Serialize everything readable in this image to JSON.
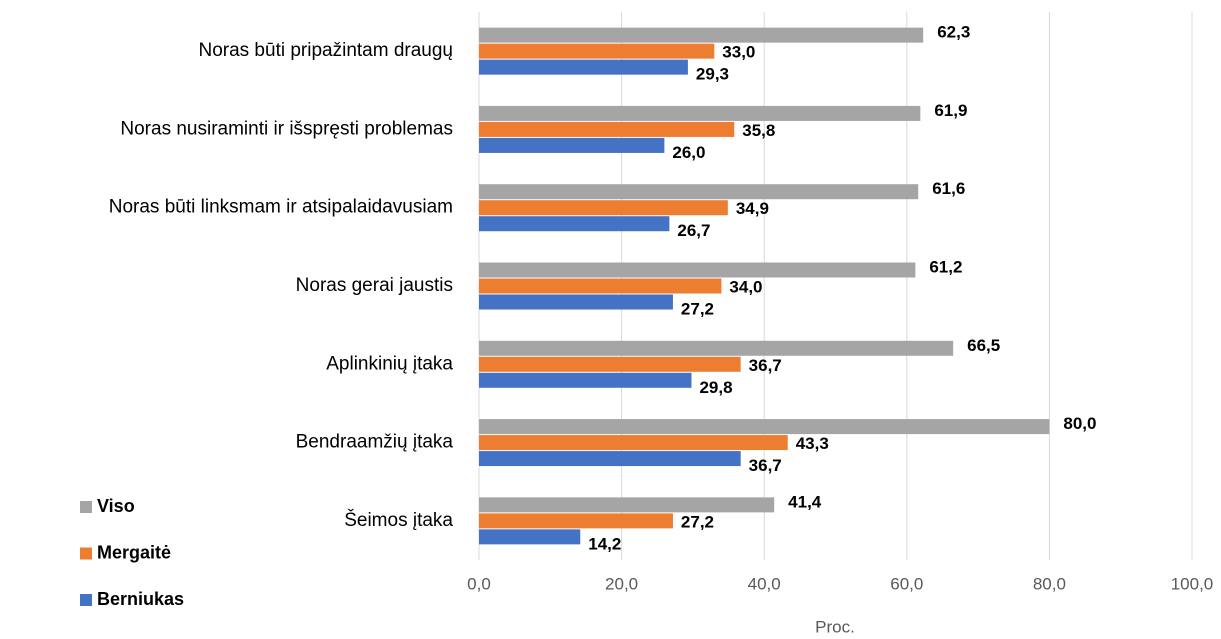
{
  "chart_data": {
    "type": "barh",
    "categories": [
      "Noras būti pripažintam draugų",
      "Noras nusiraminti ir išspręsti problemas",
      "Noras būti linksmam ir atsipalaidavusiam",
      "Noras gerai jaustis",
      "Aplinkinių įtaka",
      "Bendraamžių įtaka",
      "Šeimos įtaka"
    ],
    "series": [
      {
        "name": "Viso",
        "color": "#a5a5a5",
        "values": [
          62.3,
          61.9,
          61.6,
          61.2,
          66.5,
          80.0,
          41.4
        ],
        "value_labels": [
          "62,3",
          "61,9",
          "61,6",
          "61,2",
          "66,5",
          "80,0",
          "41,4"
        ]
      },
      {
        "name": "Mergaitė",
        "color": "#ed7d31",
        "values": [
          33.0,
          35.8,
          34.9,
          34.0,
          36.7,
          43.3,
          27.2
        ],
        "value_labels": [
          "33,0",
          "35,8",
          "34,9",
          "34,0",
          "36,7",
          "43,3",
          "27,2"
        ]
      },
      {
        "name": "Berniukas",
        "color": "#4472c4",
        "values": [
          29.3,
          26.0,
          26.7,
          27.2,
          29.8,
          36.7,
          14.2
        ],
        "value_labels": [
          "29,3",
          "26,0",
          "26,7",
          "27,2",
          "29,8",
          "36,7",
          "14,2"
        ]
      }
    ],
    "xlabel": "Proc.",
    "xlim": [
      0,
      100
    ],
    "xticks": [
      {
        "value": 0,
        "label": "0,0"
      },
      {
        "value": 20,
        "label": "20,0"
      },
      {
        "value": 40,
        "label": "40,0"
      },
      {
        "value": 60,
        "label": "60,0"
      },
      {
        "value": 80,
        "label": "80,0"
      },
      {
        "value": 100,
        "label": "100,0"
      }
    ],
    "grid": true,
    "legend": "lower left"
  }
}
